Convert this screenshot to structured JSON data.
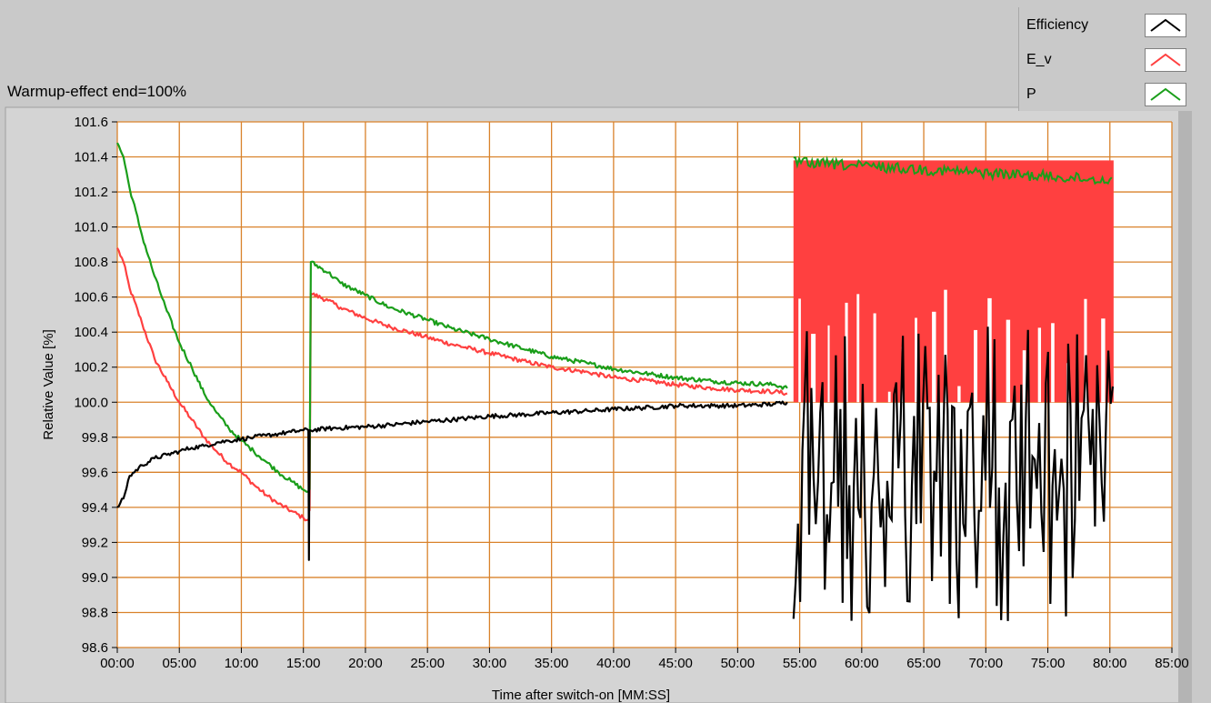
{
  "chart_data": {
    "type": "line",
    "title": "",
    "subtitle": "Warmup-effect end=100%",
    "xlabel": "Time after switch-on [MM:SS]",
    "ylabel": "Relative Value [%]",
    "xlim": [
      0,
      85
    ],
    "ylim": [
      98.6,
      101.6
    ],
    "x_ticks": [
      "00:00",
      "05:00",
      "10:00",
      "15:00",
      "20:00",
      "25:00",
      "30:00",
      "35:00",
      "40:00",
      "45:00",
      "50:00",
      "55:00",
      "60:00",
      "65:00",
      "70:00",
      "75:00",
      "80:00",
      "85:00"
    ],
    "y_ticks": [
      "98.6",
      "98.8",
      "99.0",
      "99.2",
      "99.4",
      "99.6",
      "99.8",
      "100.0",
      "100.2",
      "100.4",
      "100.6",
      "100.8",
      "101.0",
      "101.2",
      "101.4",
      "101.6"
    ],
    "grid": true,
    "legend_position": "top-right",
    "series": [
      {
        "name": "Efficiency",
        "color": "#000000",
        "segments": [
          [
            [
              0,
              99.4
            ],
            [
              0.5,
              99.45
            ],
            [
              1,
              99.58
            ],
            [
              2,
              99.64
            ],
            [
              3,
              99.68
            ],
            [
              4,
              99.7
            ],
            [
              5,
              99.72
            ],
            [
              6,
              99.74
            ],
            [
              7,
              99.75
            ],
            [
              8,
              99.77
            ],
            [
              9,
              99.78
            ],
            [
              10,
              99.79
            ],
            [
              11,
              99.8
            ],
            [
              12,
              99.81
            ],
            [
              13,
              99.82
            ],
            [
              14,
              99.83
            ],
            [
              15,
              99.84
            ],
            [
              15.4,
              99.84
            ],
            [
              15.45,
              99.1
            ],
            [
              15.5,
              99.84
            ],
            [
              17,
              99.85
            ],
            [
              20,
              99.86
            ],
            [
              22,
              99.87
            ],
            [
              25,
              99.89
            ],
            [
              27,
              99.9
            ],
            [
              30,
              99.92
            ],
            [
              33,
              99.93
            ],
            [
              35,
              99.94
            ],
            [
              38,
              99.95
            ],
            [
              40,
              99.96
            ],
            [
              43,
              99.97
            ],
            [
              45,
              99.98
            ],
            [
              48,
              99.98
            ],
            [
              50,
              99.98
            ],
            [
              53,
              99.99
            ],
            [
              54,
              100.0
            ]
          ]
        ]
      },
      {
        "name": "E_v",
        "color": "#ff4040",
        "segments": [
          [
            [
              0,
              100.88
            ],
            [
              0.5,
              100.8
            ],
            [
              1,
              100.65
            ],
            [
              2,
              100.45
            ],
            [
              3,
              100.25
            ],
            [
              4,
              100.12
            ],
            [
              5,
              100.0
            ],
            [
              6,
              99.9
            ],
            [
              7,
              99.8
            ],
            [
              8,
              99.72
            ],
            [
              9,
              99.65
            ],
            [
              10,
              99.6
            ],
            [
              11,
              99.53
            ],
            [
              12,
              99.47
            ],
            [
              13,
              99.42
            ],
            [
              14,
              99.38
            ],
            [
              15,
              99.34
            ],
            [
              15.4,
              99.33
            ]
          ],
          [
            [
              15.5,
              99.38
            ],
            [
              15.6,
              100.62
            ],
            [
              17,
              100.58
            ],
            [
              18,
              100.54
            ],
            [
              20,
              100.48
            ],
            [
              22,
              100.43
            ],
            [
              25,
              100.37
            ],
            [
              27,
              100.33
            ],
            [
              30,
              100.28
            ],
            [
              33,
              100.23
            ],
            [
              35,
              100.2
            ],
            [
              38,
              100.17
            ],
            [
              40,
              100.14
            ],
            [
              43,
              100.12
            ],
            [
              45,
              100.1
            ],
            [
              48,
              100.08
            ],
            [
              50,
              100.07
            ],
            [
              53,
              100.06
            ],
            [
              54,
              100.05
            ]
          ]
        ]
      },
      {
        "name": "P",
        "color": "#1a9e1a",
        "segments": [
          [
            [
              0,
              101.48
            ],
            [
              0.5,
              101.4
            ],
            [
              1,
              101.22
            ],
            [
              2,
              100.95
            ],
            [
              3,
              100.72
            ],
            [
              4,
              100.52
            ],
            [
              5,
              100.34
            ],
            [
              6,
              100.2
            ],
            [
              7,
              100.05
            ],
            [
              8,
              99.94
            ],
            [
              9,
              99.85
            ],
            [
              10,
              99.78
            ],
            [
              11,
              99.72
            ],
            [
              12,
              99.66
            ],
            [
              13,
              99.6
            ],
            [
              14,
              99.55
            ],
            [
              15,
              99.5
            ],
            [
              15.4,
              99.49
            ]
          ],
          [
            [
              15.5,
              99.5
            ],
            [
              15.6,
              100.8
            ],
            [
              17,
              100.74
            ],
            [
              18,
              100.68
            ],
            [
              20,
              100.61
            ],
            [
              22,
              100.54
            ],
            [
              25,
              100.47
            ],
            [
              27,
              100.42
            ],
            [
              30,
              100.36
            ],
            [
              33,
              100.3
            ],
            [
              35,
              100.26
            ],
            [
              38,
              100.22
            ],
            [
              40,
              100.19
            ],
            [
              43,
              100.16
            ],
            [
              45,
              100.14
            ],
            [
              48,
              100.12
            ],
            [
              50,
              100.11
            ],
            [
              53,
              100.1
            ],
            [
              54,
              100.08
            ]
          ]
        ]
      }
    ],
    "noisy_region": {
      "x_start": 54.5,
      "x_end": 80.3,
      "E_v_band": [
        100.0,
        101.38
      ],
      "P_band": [
        100.0,
        101.4
      ],
      "Efficiency_band": [
        98.75,
        100.45
      ]
    }
  }
}
